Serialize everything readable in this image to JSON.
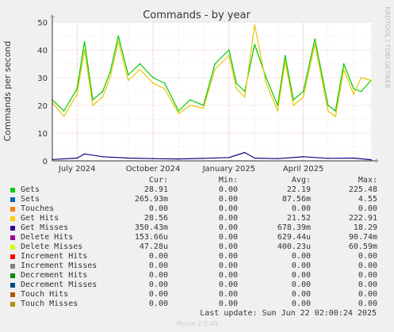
{
  "chart_data": {
    "type": "line",
    "title": "Commands - by year",
    "ylabel": "Commands per second",
    "ylim": [
      0,
      50
    ],
    "yticks": [
      0,
      10,
      20,
      30,
      40,
      50
    ],
    "xlim": [
      "2024-06-01",
      "2025-06-22"
    ],
    "xticks": [
      {
        "date": "2024-07-01",
        "label": "July 2024"
      },
      {
        "date": "2024-10-01",
        "label": "October 2024"
      },
      {
        "date": "2025-01-01",
        "label": "January 2025"
      },
      {
        "date": "2025-04-01",
        "label": "April 2025"
      }
    ],
    "grid": true,
    "series": [
      {
        "name": "Gets",
        "color": "#00cc00",
        "x": [
          "2024-06-01",
          "2024-06-15",
          "2024-07-01",
          "2024-07-10",
          "2024-07-20",
          "2024-08-01",
          "2024-08-10",
          "2024-08-20",
          "2024-09-01",
          "2024-09-15",
          "2024-10-01",
          "2024-10-15",
          "2024-11-01",
          "2024-11-15",
          "2024-12-01",
          "2024-12-15",
          "2025-01-01",
          "2025-01-10",
          "2025-01-20",
          "2025-02-01",
          "2025-02-15",
          "2025-03-01",
          "2025-03-10",
          "2025-03-20",
          "2025-04-01",
          "2025-04-15",
          "2025-05-01",
          "2025-05-10",
          "2025-05-20",
          "2025-06-01",
          "2025-06-10",
          "2025-06-22"
        ],
        "y": [
          22,
          18,
          26,
          43,
          22,
          25,
          32,
          45,
          31,
          35,
          30,
          28,
          18,
          22,
          20,
          35,
          40,
          28,
          25,
          42,
          30,
          20,
          38,
          22,
          25,
          44,
          20,
          18,
          35,
          26,
          25,
          29
        ]
      },
      {
        "name": "Get Hits",
        "color": "#e6c800",
        "x": [
          "2024-06-01",
          "2024-06-15",
          "2024-07-01",
          "2024-07-10",
          "2024-07-20",
          "2024-08-01",
          "2024-08-10",
          "2024-08-20",
          "2024-09-01",
          "2024-09-15",
          "2024-10-01",
          "2024-10-15",
          "2024-11-01",
          "2024-11-15",
          "2024-12-01",
          "2024-12-15",
          "2025-01-01",
          "2025-01-10",
          "2025-01-20",
          "2025-02-01",
          "2025-02-15",
          "2025-03-01",
          "2025-03-10",
          "2025-03-20",
          "2025-04-01",
          "2025-04-15",
          "2025-05-01",
          "2025-05-10",
          "2025-05-20",
          "2025-06-01",
          "2025-06-10",
          "2025-06-22"
        ],
        "y": [
          21,
          16,
          24,
          40,
          20,
          23,
          30,
          43,
          29,
          33,
          28,
          26,
          17,
          20,
          19,
          33,
          38,
          26,
          23,
          49,
          28,
          18,
          36,
          20,
          23,
          42,
          18,
          16,
          33,
          24,
          30,
          29
        ]
      },
      {
        "name": "Get Misses",
        "color": "#1a0080",
        "x": [
          "2024-06-01",
          "2024-07-01",
          "2024-07-10",
          "2024-08-01",
          "2024-09-01",
          "2024-10-01",
          "2024-11-01",
          "2024-12-01",
          "2025-01-01",
          "2025-01-20",
          "2025-02-01",
          "2025-03-01",
          "2025-04-01",
          "2025-05-01",
          "2025-06-01",
          "2025-06-22"
        ],
        "y": [
          0.5,
          1.0,
          2.5,
          1.5,
          1.0,
          0.8,
          0.7,
          0.9,
          1.2,
          3.0,
          1.0,
          0.8,
          1.5,
          0.9,
          1.0,
          0.4
        ]
      }
    ]
  },
  "side_label": "RRDTOOL / TOBI OETIKER",
  "legend": {
    "headers": {
      "cur": "Cur:",
      "min": "Min:",
      "avg": "Avg:",
      "max": "Max:"
    },
    "rows": [
      {
        "name": "Gets",
        "color": "#00cc00",
        "cur": "28.91",
        "min": "0.00",
        "avg": "22.19",
        "max": "225.48"
      },
      {
        "name": "Sets",
        "color": "#0066b3",
        "cur": "265.93m",
        "min": "0.00",
        "avg": "87.56m",
        "max": "4.55"
      },
      {
        "name": "Touches",
        "color": "#ff8000",
        "cur": "0.00",
        "min": "0.00",
        "avg": "0.00",
        "max": "0.00"
      },
      {
        "name": "Get Hits",
        "color": "#ffcc00",
        "cur": "28.56",
        "min": "0.00",
        "avg": "21.52",
        "max": "222.91"
      },
      {
        "name": "Get Misses",
        "color": "#330099",
        "cur": "350.43m",
        "min": "0.00",
        "avg": "678.39m",
        "max": "18.29"
      },
      {
        "name": "Delete Hits",
        "color": "#990099",
        "cur": "153.66u",
        "min": "0.00",
        "avg": "629.44u",
        "max": "90.74m"
      },
      {
        "name": "Delete Misses",
        "color": "#ccff00",
        "cur": "47.28u",
        "min": "0.00",
        "avg": "400.23u",
        "max": "60.59m"
      },
      {
        "name": "Increment Hits",
        "color": "#ff0000",
        "cur": "0.00",
        "min": "0.00",
        "avg": "0.00",
        "max": "0.00"
      },
      {
        "name": "Increment Misses",
        "color": "#808080",
        "cur": "0.00",
        "min": "0.00",
        "avg": "0.00",
        "max": "0.00"
      },
      {
        "name": "Decrement Hits",
        "color": "#008f00",
        "cur": "0.00",
        "min": "0.00",
        "avg": "0.00",
        "max": "0.00"
      },
      {
        "name": "Decrement Misses",
        "color": "#00487d",
        "cur": "0.00",
        "min": "0.00",
        "avg": "0.00",
        "max": "0.00"
      },
      {
        "name": "Touch Hits",
        "color": "#b35a00",
        "cur": "0.00",
        "min": "0.00",
        "avg": "0.00",
        "max": "0.00"
      },
      {
        "name": "Touch Misses",
        "color": "#b38f00",
        "cur": "0.00",
        "min": "0.00",
        "avg": "0.00",
        "max": "0.00"
      }
    ]
  },
  "last_update": "Last update: Sun Jun 22 02:00:24 2025",
  "footer": "Munin 2.0.49"
}
